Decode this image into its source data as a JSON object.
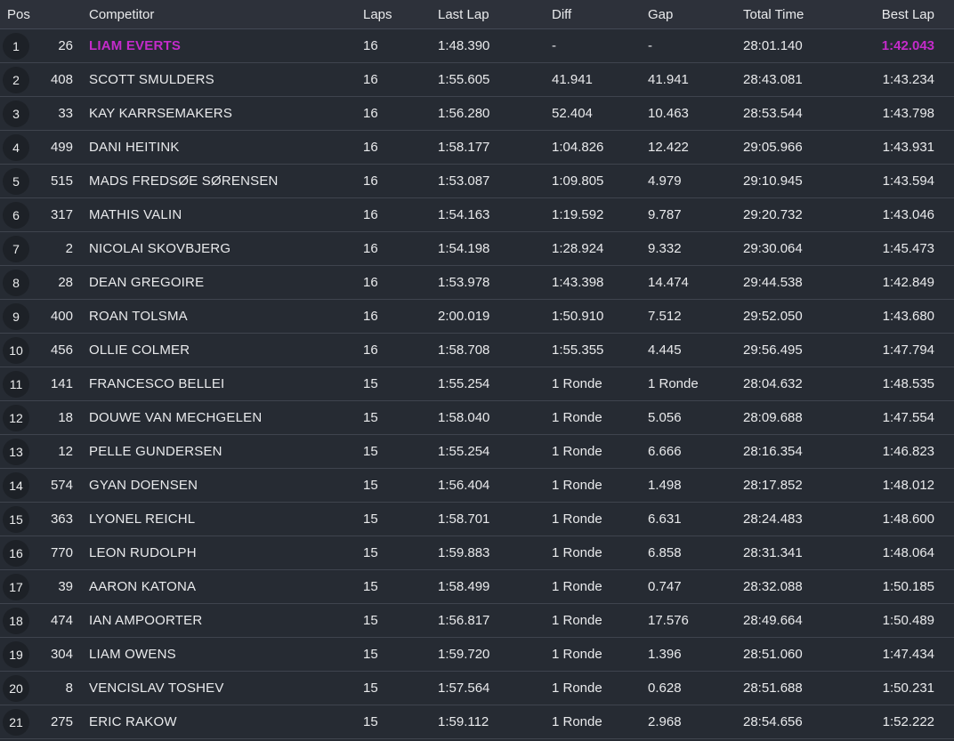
{
  "accent_color": "#c42bca",
  "table": {
    "headers": {
      "pos": "Pos",
      "competitor": "Competitor",
      "laps": "Laps",
      "last_lap": "Last Lap",
      "diff": "Diff",
      "gap": "Gap",
      "total_time": "Total Time",
      "best_lap": "Best Lap"
    },
    "rows": [
      {
        "pos": "1",
        "num": "26",
        "name": "LIAM EVERTS",
        "laps": "16",
        "last_lap": "1:48.390",
        "diff": "-",
        "gap": "-",
        "total_time": "28:01.140",
        "best_lap": "1:42.043",
        "leader": true
      },
      {
        "pos": "2",
        "num": "408",
        "name": "SCOTT SMULDERS",
        "laps": "16",
        "last_lap": "1:55.605",
        "diff": "41.941",
        "gap": "41.941",
        "total_time": "28:43.081",
        "best_lap": "1:43.234",
        "leader": false
      },
      {
        "pos": "3",
        "num": "33",
        "name": "KAY KARRSEMAKERS",
        "laps": "16",
        "last_lap": "1:56.280",
        "diff": "52.404",
        "gap": "10.463",
        "total_time": "28:53.544",
        "best_lap": "1:43.798",
        "leader": false
      },
      {
        "pos": "4",
        "num": "499",
        "name": "DANI HEITINK",
        "laps": "16",
        "last_lap": "1:58.177",
        "diff": "1:04.826",
        "gap": "12.422",
        "total_time": "29:05.966",
        "best_lap": "1:43.931",
        "leader": false
      },
      {
        "pos": "5",
        "num": "515",
        "name": "MADS FREDSØE SØRENSEN",
        "laps": "16",
        "last_lap": "1:53.087",
        "diff": "1:09.805",
        "gap": "4.979",
        "total_time": "29:10.945",
        "best_lap": "1:43.594",
        "leader": false
      },
      {
        "pos": "6",
        "num": "317",
        "name": "MATHIS VALIN",
        "laps": "16",
        "last_lap": "1:54.163",
        "diff": "1:19.592",
        "gap": "9.787",
        "total_time": "29:20.732",
        "best_lap": "1:43.046",
        "leader": false
      },
      {
        "pos": "7",
        "num": "2",
        "name": "NICOLAI SKOVBJERG",
        "laps": "16",
        "last_lap": "1:54.198",
        "diff": "1:28.924",
        "gap": "9.332",
        "total_time": "29:30.064",
        "best_lap": "1:45.473",
        "leader": false
      },
      {
        "pos": "8",
        "num": "28",
        "name": "DEAN GREGOIRE",
        "laps": "16",
        "last_lap": "1:53.978",
        "diff": "1:43.398",
        "gap": "14.474",
        "total_time": "29:44.538",
        "best_lap": "1:42.849",
        "leader": false
      },
      {
        "pos": "9",
        "num": "400",
        "name": "ROAN TOLSMA",
        "laps": "16",
        "last_lap": "2:00.019",
        "diff": "1:50.910",
        "gap": "7.512",
        "total_time": "29:52.050",
        "best_lap": "1:43.680",
        "leader": false
      },
      {
        "pos": "10",
        "num": "456",
        "name": "OLLIE COLMER",
        "laps": "16",
        "last_lap": "1:58.708",
        "diff": "1:55.355",
        "gap": "4.445",
        "total_time": "29:56.495",
        "best_lap": "1:47.794",
        "leader": false
      },
      {
        "pos": "11",
        "num": "141",
        "name": "FRANCESCO BELLEI",
        "laps": "15",
        "last_lap": "1:55.254",
        "diff": "1 Ronde",
        "gap": "1 Ronde",
        "total_time": "28:04.632",
        "best_lap": "1:48.535",
        "leader": false
      },
      {
        "pos": "12",
        "num": "18",
        "name": "DOUWE VAN MECHGELEN",
        "laps": "15",
        "last_lap": "1:58.040",
        "diff": "1 Ronde",
        "gap": "5.056",
        "total_time": "28:09.688",
        "best_lap": "1:47.554",
        "leader": false
      },
      {
        "pos": "13",
        "num": "12",
        "name": "PELLE GUNDERSEN",
        "laps": "15",
        "last_lap": "1:55.254",
        "diff": "1 Ronde",
        "gap": "6.666",
        "total_time": "28:16.354",
        "best_lap": "1:46.823",
        "leader": false
      },
      {
        "pos": "14",
        "num": "574",
        "name": "GYAN DOENSEN",
        "laps": "15",
        "last_lap": "1:56.404",
        "diff": "1 Ronde",
        "gap": "1.498",
        "total_time": "28:17.852",
        "best_lap": "1:48.012",
        "leader": false
      },
      {
        "pos": "15",
        "num": "363",
        "name": "LYONEL REICHL",
        "laps": "15",
        "last_lap": "1:58.701",
        "diff": "1 Ronde",
        "gap": "6.631",
        "total_time": "28:24.483",
        "best_lap": "1:48.600",
        "leader": false
      },
      {
        "pos": "16",
        "num": "770",
        "name": "LEON RUDOLPH",
        "laps": "15",
        "last_lap": "1:59.883",
        "diff": "1 Ronde",
        "gap": "6.858",
        "total_time": "28:31.341",
        "best_lap": "1:48.064",
        "leader": false
      },
      {
        "pos": "17",
        "num": "39",
        "name": "AARON KATONA",
        "laps": "15",
        "last_lap": "1:58.499",
        "diff": "1 Ronde",
        "gap": "0.747",
        "total_time": "28:32.088",
        "best_lap": "1:50.185",
        "leader": false
      },
      {
        "pos": "18",
        "num": "474",
        "name": "IAN AMPOORTER",
        "laps": "15",
        "last_lap": "1:56.817",
        "diff": "1 Ronde",
        "gap": "17.576",
        "total_time": "28:49.664",
        "best_lap": "1:50.489",
        "leader": false
      },
      {
        "pos": "19",
        "num": "304",
        "name": "LIAM OWENS",
        "laps": "15",
        "last_lap": "1:59.720",
        "diff": "1 Ronde",
        "gap": "1.396",
        "total_time": "28:51.060",
        "best_lap": "1:47.434",
        "leader": false
      },
      {
        "pos": "20",
        "num": "8",
        "name": "VENCISLAV TOSHEV",
        "laps": "15",
        "last_lap": "1:57.564",
        "diff": "1 Ronde",
        "gap": "0.628",
        "total_time": "28:51.688",
        "best_lap": "1:50.231",
        "leader": false
      },
      {
        "pos": "21",
        "num": "275",
        "name": "ERIC RAKOW",
        "laps": "15",
        "last_lap": "1:59.112",
        "diff": "1 Ronde",
        "gap": "2.968",
        "total_time": "28:54.656",
        "best_lap": "1:52.222",
        "leader": false
      }
    ]
  }
}
